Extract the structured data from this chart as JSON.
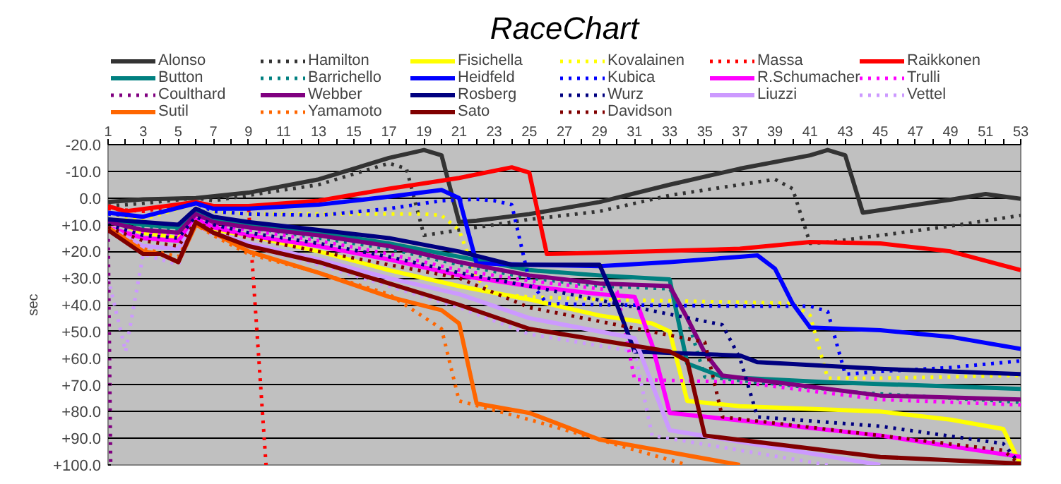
{
  "chart_data": {
    "type": "line",
    "title": "RaceChart",
    "ylabel": "sec",
    "xlim": [
      1,
      53
    ],
    "ylim": [
      100,
      -20
    ],
    "xticks": [
      1,
      {
        "value": 2,
        "label": null
      },
      3,
      {
        "value": 4,
        "label": null
      },
      5,
      {
        "value": 6,
        "label": null
      },
      7,
      {
        "value": 8,
        "label": null
      },
      9,
      {
        "value": 10,
        "label": null
      },
      11,
      {
        "value": 12,
        "label": null
      },
      13,
      {
        "value": 14,
        "label": null
      },
      15,
      {
        "value": 16,
        "label": null
      },
      17,
      {
        "value": 18,
        "label": null
      },
      19,
      {
        "value": 20,
        "label": null
      },
      21,
      {
        "value": 22,
        "label": null
      },
      23,
      {
        "value": 24,
        "label": null
      },
      25,
      {
        "value": 26,
        "label": null
      },
      27,
      {
        "value": 28,
        "label": null
      },
      29,
      {
        "value": 30,
        "label": null
      },
      31,
      {
        "value": 32,
        "label": null
      },
      33,
      {
        "value": 34,
        "label": null
      },
      35,
      {
        "value": 36,
        "label": null
      },
      37,
      {
        "value": 38,
        "label": null
      },
      39,
      {
        "value": 40,
        "label": null
      },
      41,
      {
        "value": 42,
        "label": null
      },
      43,
      {
        "value": 44,
        "label": null
      },
      45,
      {
        "value": 46,
        "label": null
      },
      47,
      {
        "value": 48,
        "label": null
      },
      49,
      {
        "value": 50,
        "label": null
      },
      51,
      {
        "value": 52,
        "label": null
      },
      53
    ],
    "yticks": [
      {
        "value": -20,
        "label": "-20.0"
      },
      {
        "value": -10,
        "label": "-10.0"
      },
      {
        "value": 0,
        "label": "0.0"
      },
      {
        "value": 10,
        "label": "+10.0"
      },
      {
        "value": 20,
        "label": "+20.0"
      },
      {
        "value": 30,
        "label": "+30.0"
      },
      {
        "value": 40,
        "label": "+40.0"
      },
      {
        "value": 50,
        "label": "+50.0"
      },
      {
        "value": 60,
        "label": "+60.0"
      },
      {
        "value": 70,
        "label": "+70.0"
      },
      {
        "value": 80,
        "label": "+80.0"
      },
      {
        "value": 90,
        "label": "+90.0"
      },
      {
        "value": 100,
        "label": "+100.0"
      }
    ],
    "grid": "y",
    "legend": "top",
    "series": [
      {
        "name": "Alonso",
        "color": "#333333",
        "line_style": "solid",
        "x": [
          1,
          3,
          6,
          9,
          13,
          17,
          19,
          20,
          21,
          22,
          25,
          29,
          33,
          37,
          41,
          42,
          43,
          44,
          49,
          51,
          53
        ],
        "values": [
          1.5,
          0.5,
          0,
          -2,
          -7,
          -15,
          -18,
          -16,
          9,
          8.5,
          6,
          1.5,
          -5,
          -11,
          -16,
          -18,
          -16,
          5.5,
          0.6,
          -1.5,
          0.3
        ]
      },
      {
        "name": "Hamilton",
        "color": "#333333",
        "line_style": "dotted",
        "x": [
          1,
          3,
          6,
          7,
          9,
          13,
          17,
          18,
          19,
          21,
          25,
          29,
          33,
          37,
          39,
          40,
          41,
          42,
          45,
          49,
          53
        ],
        "values": [
          3,
          2,
          0,
          1,
          -1,
          -5,
          -13,
          -11,
          14,
          12,
          8,
          5,
          -1,
          -5,
          -7,
          -3.5,
          17,
          16.5,
          14,
          10.5,
          6.5
        ]
      },
      {
        "name": "Fisichella",
        "color": "#ffff00",
        "line_style": "solid",
        "x": [
          1,
          3,
          5,
          6,
          7,
          9,
          13,
          17,
          21,
          25,
          29,
          32,
          33,
          34,
          37,
          41,
          45,
          49,
          52,
          53
        ],
        "values": [
          8,
          13,
          15,
          8,
          12,
          14,
          20,
          27,
          33,
          38,
          44,
          47,
          50,
          76,
          78,
          79,
          80,
          83,
          86.5,
          100
        ]
      },
      {
        "name": "Kovalainen",
        "color": "#ffff00",
        "line_style": "dotted",
        "x": [
          1,
          3,
          6,
          7,
          9,
          19,
          20,
          21,
          22,
          23,
          25,
          29,
          37,
          40,
          41,
          42,
          45,
          49,
          53
        ],
        "values": [
          6,
          8,
          2,
          5,
          6,
          6,
          6.5,
          12,
          30,
          36,
          37,
          38,
          39,
          39.5,
          44,
          67.5,
          67.5,
          67,
          66.5
        ]
      },
      {
        "name": "Massa",
        "color": "#ff0000",
        "line_style": "dotted",
        "x": [
          1,
          3,
          6,
          7,
          9,
          10
        ],
        "values": [
          4,
          5,
          1.5,
          3.5,
          3.5,
          100
        ]
      },
      {
        "name": "Raikkonen",
        "color": "#ff0000",
        "line_style": "solid",
        "x": [
          1,
          2,
          6,
          7,
          9,
          13,
          17,
          21,
          24,
          25,
          26,
          29,
          37,
          41,
          45,
          49,
          53
        ],
        "values": [
          3,
          5,
          1.5,
          3,
          3,
          1,
          -3.5,
          -7.5,
          -11.5,
          -9.5,
          21,
          20.5,
          19,
          16.5,
          17,
          20,
          27
        ]
      },
      {
        "name": "Button",
        "color": "#008080",
        "line_style": "solid",
        "x": [
          1,
          3,
          5,
          6,
          7,
          9,
          13,
          17,
          21,
          25,
          29,
          33,
          34,
          36,
          42,
          53
        ],
        "values": [
          8,
          10,
          11,
          5,
          8,
          10,
          13,
          17,
          22,
          27,
          29,
          30.5,
          62,
          67,
          69,
          71.5
        ]
      },
      {
        "name": "Barrichello",
        "color": "#008080",
        "line_style": "dotted",
        "x": [
          1,
          3,
          5,
          6,
          7,
          9,
          13,
          17,
          21,
          25,
          29,
          33,
          34,
          35,
          44,
          53
        ],
        "values": [
          9,
          11,
          12,
          6,
          9,
          11,
          15,
          19,
          25,
          30,
          33,
          34,
          45,
          67,
          73,
          76.5
        ]
      },
      {
        "name": "Heidfeld",
        "color": "#0000ff",
        "line_style": "solid",
        "x": [
          1,
          3,
          6,
          7,
          9,
          13,
          17,
          20,
          21,
          22,
          25,
          29,
          33,
          37,
          38,
          39,
          40,
          41,
          45,
          49,
          53
        ],
        "values": [
          5.5,
          7,
          2,
          4,
          4,
          2.5,
          -0.5,
          -3,
          0,
          24.5,
          25,
          25.5,
          24,
          22,
          21.5,
          26.5,
          39.5,
          48.5,
          49.5,
          52,
          56.5
        ]
      },
      {
        "name": "Kubica",
        "color": "#0000ff",
        "line_style": "dotted",
        "x": [
          1,
          3,
          6,
          7,
          9,
          13,
          17,
          20,
          22,
          23,
          24,
          25,
          26,
          29,
          37,
          41,
          42,
          43,
          45,
          49,
          53
        ],
        "values": [
          6,
          7,
          2,
          5,
          6,
          6.5,
          4,
          1,
          0.5,
          1,
          2.5,
          31,
          39.5,
          40,
          40.5,
          40.5,
          42.5,
          66,
          65,
          63.5,
          61
        ]
      },
      {
        "name": "R.Schumacher",
        "color": "#ff00ff",
        "line_style": "solid",
        "x": [
          1,
          3,
          5,
          6,
          7,
          9,
          13,
          17,
          21,
          25,
          29,
          31,
          32,
          33,
          38,
          45,
          53
        ],
        "values": [
          11,
          15,
          16,
          8,
          11,
          14,
          18,
          23,
          29,
          33,
          36,
          37,
          55,
          80.5,
          84,
          89,
          97
        ]
      },
      {
        "name": "Trulli",
        "color": "#ff00ff",
        "line_style": "dotted",
        "x": [
          1,
          3,
          5,
          6,
          7,
          9,
          13,
          17,
          21,
          25,
          29,
          30,
          31,
          37,
          45,
          53
        ],
        "values": [
          10,
          13,
          14,
          7,
          10,
          12,
          16,
          21,
          27,
          31,
          34,
          35,
          68,
          69,
          75.5,
          77.5
        ]
      },
      {
        "name": "Coulthard",
        "color": "#800080",
        "line_style": "dotted",
        "x": [
          1,
          1.15
        ],
        "values": [
          9,
          100
        ]
      },
      {
        "name": "Webber",
        "color": "#800080",
        "line_style": "solid",
        "x": [
          1,
          3,
          5,
          6,
          7,
          9,
          13,
          17,
          21,
          25,
          29,
          33,
          34,
          35,
          36,
          45,
          53
        ],
        "values": [
          9,
          12,
          13,
          6,
          9,
          11,
          14,
          18,
          24,
          29,
          32,
          33,
          45,
          58,
          66.5,
          74,
          75.5
        ]
      },
      {
        "name": "Rosberg",
        "color": "#000080",
        "line_style": "solid",
        "x": [
          1,
          3,
          5,
          6,
          7,
          9,
          13,
          17,
          21,
          24,
          29,
          30,
          31,
          37,
          38,
          45,
          53
        ],
        "values": [
          8,
          9,
          10,
          4,
          7,
          9,
          12,
          15,
          20,
          25,
          25,
          40,
          57.5,
          59,
          61.5,
          64,
          66
        ]
      },
      {
        "name": "Wurz",
        "color": "#000080",
        "line_style": "dotted",
        "x": [
          1,
          3,
          5,
          6,
          7,
          9,
          13,
          17,
          21,
          25,
          36,
          37,
          38,
          45,
          52,
          53
        ],
        "values": [
          10,
          14,
          15,
          7,
          10,
          13,
          17,
          22,
          28,
          33,
          47.5,
          60,
          82,
          85.5,
          92,
          100
        ]
      },
      {
        "name": "Liuzzi",
        "color": "#cc99ff",
        "line_style": "solid",
        "x": [
          1,
          3,
          5,
          6,
          7,
          9,
          13,
          17,
          21,
          25,
          31,
          33,
          45
        ],
        "values": [
          11,
          18,
          19,
          9,
          13,
          17,
          23,
          30,
          36,
          45,
          52.5,
          87,
          100
        ]
      },
      {
        "name": "Vettel",
        "color": "#cc99ff",
        "line_style": "dotted",
        "x": [
          1,
          2,
          3,
          5,
          6,
          7,
          9,
          13,
          17,
          21,
          25,
          31,
          32,
          42
        ],
        "values": [
          30,
          57.5,
          21,
          25,
          10,
          14,
          18,
          25,
          33,
          41,
          51,
          57.5,
          89,
          100
        ]
      },
      {
        "name": "Sutil",
        "color": "#ff6600",
        "line_style": "solid",
        "x": [
          1,
          3,
          4,
          5,
          6,
          7,
          9,
          13,
          17,
          20,
          21,
          22,
          25,
          29,
          37
        ],
        "values": [
          11,
          20,
          21,
          24,
          10,
          13,
          20,
          28,
          37,
          42,
          47,
          77,
          80.5,
          90.5,
          100
        ]
      },
      {
        "name": "Yamamoto",
        "color": "#ff6600",
        "line_style": "dotted",
        "x": [
          1,
          3,
          5,
          6,
          7,
          9,
          13,
          17,
          20,
          21,
          25,
          34
        ],
        "values": [
          11,
          19,
          22,
          10,
          14,
          21,
          28,
          36,
          49,
          76,
          83,
          100
        ]
      },
      {
        "name": "Sato",
        "color": "#800000",
        "line_style": "solid",
        "x": [
          1,
          3,
          4,
          5,
          6,
          7,
          9,
          13,
          17,
          21,
          25,
          33,
          34,
          35,
          45,
          53
        ],
        "values": [
          12,
          21,
          21,
          24,
          9,
          13,
          18,
          24,
          32,
          40,
          49,
          57.5,
          61,
          89,
          97,
          99.5
        ]
      },
      {
        "name": "Davidson",
        "color": "#800000",
        "line_style": "dotted",
        "x": [
          1,
          3,
          5,
          6,
          7,
          9,
          13,
          17,
          21,
          25,
          35,
          36,
          45,
          52,
          53
        ],
        "values": [
          11,
          16,
          18,
          9,
          12,
          15,
          20,
          25,
          30,
          41,
          54,
          82,
          89,
          94.5,
          100
        ]
      }
    ]
  }
}
